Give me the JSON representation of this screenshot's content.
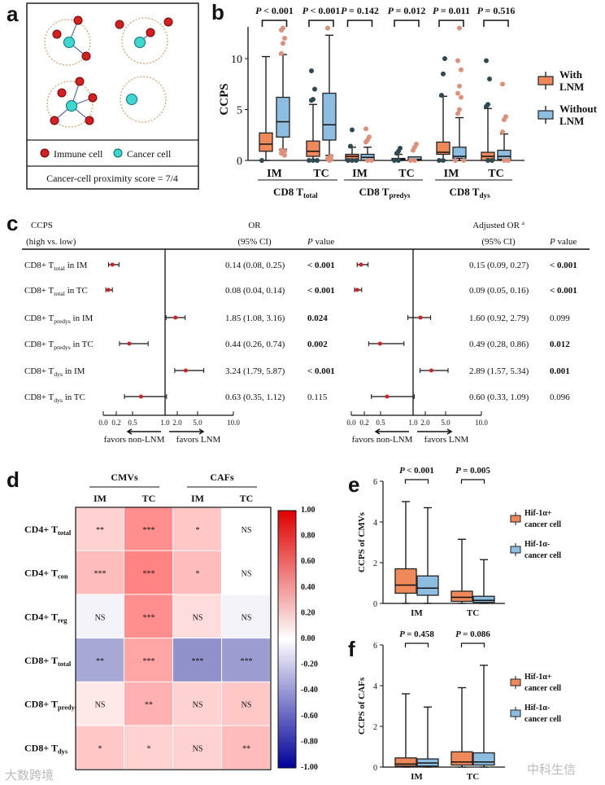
{
  "panel_labels": {
    "a": "a",
    "b": "b",
    "c": "c",
    "d": "d",
    "e": "e",
    "f": "f"
  },
  "panel_a": {
    "legend_immune": "Immune cell",
    "legend_cancer": "Cancer  cell",
    "score_text": "Cancer-cell proximity score = 7/4",
    "colors": {
      "immune": "#d42020",
      "cancer": "#3fd6cf",
      "ring": "#e0a070"
    }
  },
  "watermarks": {
    "left": "大数跨境",
    "right": "中科生信"
  },
  "chart_data": [
    {
      "id": "b",
      "type": "box",
      "ylabel": "CCPS",
      "ylim": [
        0,
        13
      ],
      "yticks": [
        0,
        5,
        10
      ],
      "groups": [
        {
          "name_pre": "CD8 T",
          "name_sub": "total",
          "sites": [
            "IM",
            "TC"
          ]
        },
        {
          "name_pre": "CD8 T",
          "name_sub": "predys",
          "sites": [
            "IM",
            "TC"
          ]
        },
        {
          "name_pre": "CD8 T",
          "name_sub": "dys",
          "sites": [
            "IM",
            "TC"
          ]
        }
      ],
      "legend": [
        {
          "label1": "With",
          "label2": "LNM",
          "color": "#f0895a"
        },
        {
          "label1": "Without",
          "label2": "LNM",
          "color": "#8dbde0"
        }
      ],
      "pvalues": [
        "< 0.001",
        "< 0.001",
        "= 0.142",
        "= 0.012",
        "= 0.011",
        "= 0.516"
      ],
      "boxes": [
        {
          "series": "With LNM",
          "min": 0,
          "q1": 0.9,
          "median": 1.6,
          "q3": 2.7,
          "max": 10.2,
          "outliers": [
            0
          ]
        },
        {
          "series": "Without LNM",
          "min": 1.1,
          "q1": 2.3,
          "median": 3.8,
          "q3": 6.2,
          "max": 10.4,
          "outliers": [
            10.5,
            11.5,
            12,
            12.8,
            13,
            0.5,
            0.7,
            0.8,
            0.9,
            1.0
          ]
        },
        {
          "series": "With LNM",
          "min": 0,
          "q1": 0.4,
          "median": 0.9,
          "q3": 1.9,
          "max": 5.5,
          "outliers": [
            5.9,
            6.0,
            7.0,
            8.8,
            0,
            0,
            0
          ]
        },
        {
          "series": "Without LNM",
          "min": 0.5,
          "q1": 2.0,
          "median": 3.5,
          "q3": 6.6,
          "max": 12.3,
          "outliers": [
            13,
            0,
            0.1,
            0.2,
            0.3,
            0.4
          ]
        },
        {
          "series": "With LNM",
          "min": 0,
          "q1": 0,
          "median": 0.4,
          "q3": 0.6,
          "max": 1.3,
          "outliers": [
            1.4,
            3.0,
            0,
            0,
            0
          ]
        },
        {
          "series": "Without LNM",
          "min": 0,
          "q1": 0,
          "median": 0.3,
          "q3": 0.6,
          "max": 1.3,
          "outliers": [
            1.8,
            2.0,
            2.3,
            3.1,
            0,
            0
          ]
        },
        {
          "series": "With LNM",
          "min": 0,
          "q1": 0,
          "median": 0.1,
          "q3": 0.2,
          "max": 0.6,
          "outliers": [
            0.7,
            0.9,
            1.2,
            0,
            0
          ]
        },
        {
          "series": "Without LNM",
          "min": 0,
          "q1": 0,
          "median": 0.1,
          "q3": 0.35,
          "max": 0.35,
          "outliers": [
            1.0,
            1.3,
            1.6,
            0,
            0
          ]
        },
        {
          "series": "With LNM",
          "min": 0,
          "q1": 0.6,
          "median": 0.8,
          "q3": 1.8,
          "max": 6.3,
          "outliers": [
            6.4,
            8.5,
            10,
            0,
            0
          ]
        },
        {
          "series": "Without LNM",
          "min": 0,
          "q1": 0.2,
          "median": 0.4,
          "q3": 1.3,
          "max": 4.2,
          "outliers": [
            4.6,
            5.0,
            6.2,
            6.6,
            7.3,
            8.9,
            9.8,
            13,
            0,
            0
          ]
        },
        {
          "series": "With LNM",
          "min": 0,
          "q1": 0,
          "median": 0.4,
          "q3": 0.8,
          "max": 5.1,
          "outliers": [
            5.3,
            5.5,
            8.0,
            9.8,
            0,
            0
          ]
        },
        {
          "series": "Without LNM",
          "min": 0,
          "q1": 0.1,
          "median": 0.4,
          "q3": 1.0,
          "max": 2.6,
          "outliers": [
            2.8,
            4.0,
            4.3,
            7.5,
            0,
            0
          ]
        }
      ]
    },
    {
      "id": "c",
      "type": "forest",
      "headers": {
        "ccps1": "CCPS",
        "ccps2": "(high vs. low)",
        "or1": "OR",
        "or2": "(95% CI)",
        "p": "P value",
        "aor1": "Adjusted OR ",
        "aor_sup": "a",
        "aor2": "(95% CI)",
        "ap": "P value"
      },
      "xticks": [
        "0.0",
        "0.2",
        "0.5",
        "1.0",
        "2.0",
        "5.0",
        "10.0"
      ],
      "favors_left": "favors non-LNM",
      "favors_right": "favors LNM",
      "rows": [
        {
          "pre": "CD8+ T",
          "sub": "total",
          "post": " in IM",
          "or": 0.14,
          "lo": 0.08,
          "hi": 0.25,
          "or_text": "0.14 (0.08, 0.25)",
          "p": "< 0.001",
          "p_bold": true,
          "aor": 0.15,
          "alo": 0.09,
          "ahi": 0.27,
          "aor_text": "0.15 (0.09, 0.27)",
          "ap": "< 0.001",
          "ap_bold": true
        },
        {
          "pre": "CD8+ T",
          "sub": "total",
          "post": " in TC",
          "or": 0.08,
          "lo": 0.04,
          "hi": 0.14,
          "or_text": "0.08 (0.04, 0.14)",
          "p": "< 0.001",
          "p_bold": true,
          "aor": 0.09,
          "alo": 0.05,
          "ahi": 0.16,
          "aor_text": "0.09 (0.05, 0.16)",
          "ap": "< 0.001",
          "ap_bold": true
        },
        {
          "pre": "CD8+ T",
          "sub": "predys",
          "post": " in IM",
          "or": 1.85,
          "lo": 1.08,
          "hi": 3.16,
          "or_text": "1.85 (1.08, 3.16)",
          "p": "0.024",
          "p_bold": true,
          "aor": 1.6,
          "alo": 0.92,
          "ahi": 2.79,
          "aor_text": "1.60 (0.92, 2.79)",
          "ap": "0.099",
          "ap_bold": false
        },
        {
          "pre": "CD8+ T",
          "sub": "predys",
          "post": " in TC",
          "or": 0.44,
          "lo": 0.26,
          "hi": 0.74,
          "or_text": "0.44 (0.26, 0.74)",
          "p": "0.002",
          "p_bold": true,
          "aor": 0.49,
          "alo": 0.28,
          "ahi": 0.86,
          "aor_text": "0.49 (0.28, 0.86)",
          "ap": "0.012",
          "ap_bold": true
        },
        {
          "pre": "CD8+ T",
          "sub": "dys",
          "post": " in IM",
          "or": 3.24,
          "lo": 1.79,
          "hi": 5.87,
          "or_text": "3.24 (1.79, 5.87)",
          "p": "< 0.001",
          "p_bold": true,
          "aor": 2.89,
          "alo": 1.57,
          "ahi": 5.34,
          "aor_text": "2.89 (1.57, 5.34)",
          "ap": "0.001",
          "ap_bold": true
        },
        {
          "pre": "CD8+ T",
          "sub": "dys",
          "post": " in TC",
          "or": 0.63,
          "lo": 0.35,
          "hi": 1.12,
          "or_text": "0.63 (0.35, 1.12)",
          "p": "0.115",
          "p_bold": false,
          "aor": 0.6,
          "alo": 0.33,
          "ahi": 1.09,
          "aor_text": "0.60 (0.33, 1.09)",
          "ap": "0.096",
          "ap_bold": false
        }
      ]
    },
    {
      "id": "d",
      "type": "heatmap",
      "col_groups": [
        "CMVs",
        "CAFs"
      ],
      "cols": [
        "IM",
        "TC",
        "IM",
        "TC"
      ],
      "rows": [
        {
          "pre": "CD4+ T",
          "sub": "total"
        },
        {
          "pre": "CD4+ T",
          "sub": "con"
        },
        {
          "pre": "CD4+ T",
          "sub": "reg"
        },
        {
          "pre": "CD8+ T",
          "sub": "total"
        },
        {
          "pre": "CD8+ T",
          "sub": "predys"
        },
        {
          "pre": "CD8+ T",
          "sub": "dys"
        }
      ],
      "values": [
        [
          0.2,
          0.5,
          0.25,
          0.0
        ],
        [
          0.3,
          0.55,
          0.3,
          0.0
        ],
        [
          -0.05,
          0.5,
          0.15,
          -0.05
        ],
        [
          -0.35,
          0.4,
          -0.45,
          -0.4
        ],
        [
          0.1,
          0.35,
          0.2,
          0.25
        ],
        [
          0.25,
          0.2,
          0.2,
          0.3
        ]
      ],
      "labels": [
        [
          "**",
          "***",
          "*",
          "NS"
        ],
        [
          "***",
          "***",
          "*",
          "NS"
        ],
        [
          "NS",
          "***",
          "NS",
          "NS"
        ],
        [
          "**",
          "***",
          "***",
          "***"
        ],
        [
          "NS",
          "**",
          "NS",
          "NS"
        ],
        [
          "*",
          "*",
          "NS",
          "**"
        ]
      ],
      "colorbar_ticks": [
        "1.00",
        "0.80",
        "0.60",
        "0.40",
        "0.20",
        "0.00",
        "-0.20",
        "-0.40",
        "-0.60",
        "-0.80",
        "-1.00"
      ],
      "range": [
        -1,
        1
      ]
    },
    {
      "id": "e",
      "type": "box",
      "ylabel": "CCPS of CMVs",
      "ylim": [
        0,
        6
      ],
      "yticks": [
        0,
        2,
        4,
        6
      ],
      "sites": [
        "IM",
        "TC"
      ],
      "pvalues": [
        "< 0.001",
        "= 0.005"
      ],
      "legend": [
        {
          "label1": "Hif-1α+",
          "label2": "cancer cell",
          "color": "#f0895a"
        },
        {
          "label1": "Hif-1α-",
          "label2": "cancer cell",
          "color": "#8dbde0"
        }
      ],
      "boxes": [
        {
          "min": 0,
          "q1": 0.5,
          "median": 0.9,
          "q3": 1.7,
          "max": 5.0
        },
        {
          "min": 0,
          "q1": 0.4,
          "median": 0.75,
          "q3": 1.35,
          "max": 4.7
        },
        {
          "min": 0,
          "q1": 0.1,
          "median": 0.3,
          "q3": 0.6,
          "max": 3.15
        },
        {
          "min": 0,
          "q1": 0.05,
          "median": 0.15,
          "q3": 0.35,
          "max": 2.15
        }
      ]
    },
    {
      "id": "f",
      "type": "box",
      "ylabel": "CCPS of CAFs",
      "ylim": [
        0,
        6
      ],
      "yticks": [
        0,
        2,
        4,
        6
      ],
      "sites": [
        "IM",
        "TC"
      ],
      "pvalues": [
        "= 0.458",
        "= 0.086"
      ],
      "legend": [
        {
          "label1": "Hif-1α+",
          "label2": "cancer cell",
          "color": "#f0895a"
        },
        {
          "label1": "Hif-1α-",
          "label2": "cancer cell",
          "color": "#8dbde0"
        }
      ],
      "boxes": [
        {
          "min": 0,
          "q1": 0.05,
          "median": 0.15,
          "q3": 0.45,
          "max": 3.6
        },
        {
          "min": 0,
          "q1": 0.05,
          "median": 0.2,
          "q3": 0.4,
          "max": 2.95
        },
        {
          "min": 0,
          "q1": 0.1,
          "median": 0.25,
          "q3": 0.75,
          "max": 3.9
        },
        {
          "min": 0,
          "q1": 0.1,
          "median": 0.25,
          "q3": 0.7,
          "max": 5.0
        }
      ]
    }
  ]
}
